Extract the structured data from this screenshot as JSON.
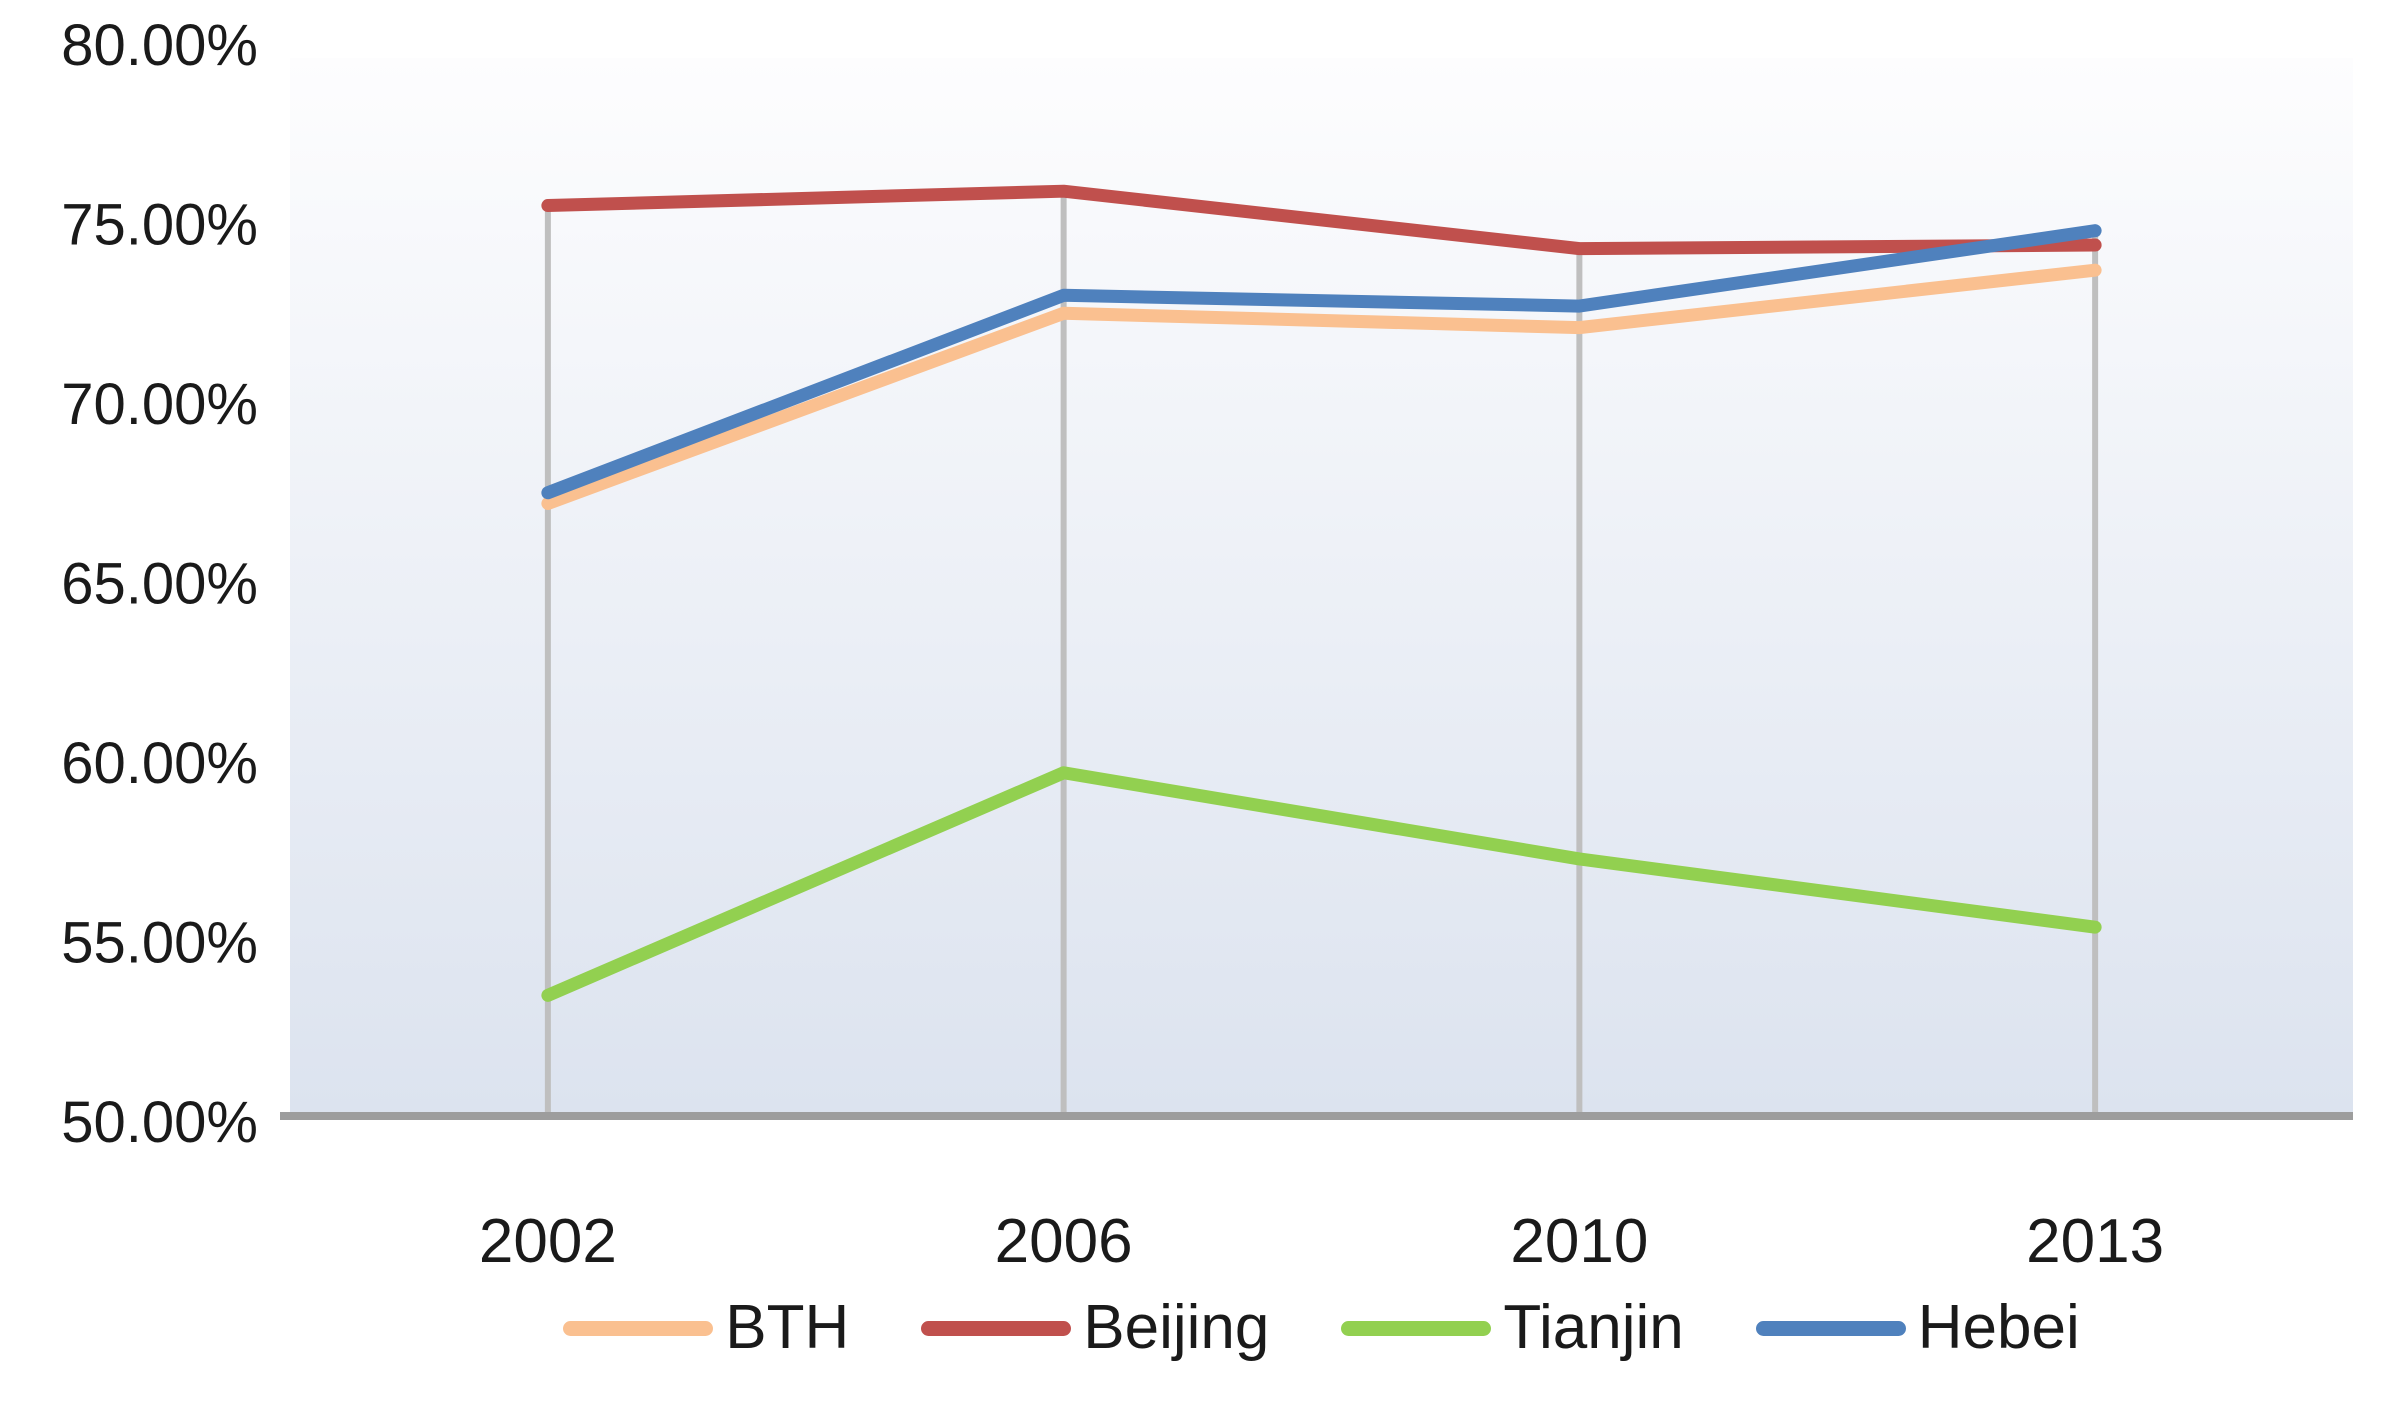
{
  "chart_data": {
    "type": "line",
    "title": "",
    "categories": [
      "2002",
      "2006",
      "2010",
      "2013"
    ],
    "series": [
      {
        "name": "BTH",
        "color": "#FAC090",
        "values": [
          67.2,
          72.5,
          72.1,
          73.7
        ]
      },
      {
        "name": "Beijing",
        "color": "#C0504D",
        "values": [
          75.5,
          75.9,
          74.3,
          74.4
        ]
      },
      {
        "name": "Tianjin",
        "color": "#92D050",
        "values": [
          53.5,
          59.7,
          57.3,
          55.4
        ]
      },
      {
        "name": "Hebei",
        "color": "#4F81BD",
        "values": [
          67.5,
          73.0,
          72.7,
          74.8
        ]
      }
    ],
    "y_axis": {
      "min": 50,
      "max": 80,
      "step": 5,
      "tick_labels": [
        "50.00%",
        "55.00%",
        "60.00%",
        "65.00%",
        "70.00%",
        "75.00%",
        "80.00%"
      ]
    },
    "x_axis": {
      "tick_labels": [
        "2002",
        "2006",
        "2010",
        "2013"
      ]
    },
    "ylim": [
      50,
      80
    ],
    "legend": {
      "position": "bottom",
      "entries": [
        "BTH",
        "Beijing",
        "Tianjin",
        "Hebei"
      ]
    },
    "grid": {
      "horizontal": false,
      "vertical_drop_lines": true
    },
    "styles": {
      "plot_bg_top": "#FDFDFE",
      "plot_bg_bottom": "#DCE3EF",
      "axis_line_color": "#9D9D9D",
      "drop_line_color": "#BFBFBF",
      "text_color": "#1A1A1A",
      "line_width": 13
    }
  }
}
